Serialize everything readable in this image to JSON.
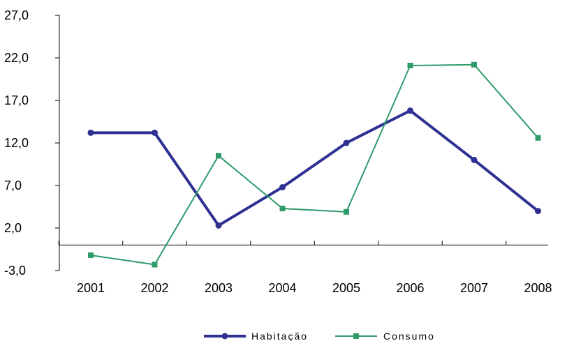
{
  "chart_data": {
    "type": "line",
    "categories": [
      "2001",
      "2002",
      "2003",
      "2004",
      "2005",
      "2006",
      "2007",
      "2008"
    ],
    "series": [
      {
        "name": "Habitação",
        "values": [
          13.2,
          13.2,
          2.3,
          6.8,
          12.0,
          15.8,
          10.0,
          4.0
        ],
        "color": "#2e3192",
        "marker": "circle"
      },
      {
        "name": "Consumo",
        "values": [
          -1.2,
          -2.3,
          10.5,
          4.3,
          3.9,
          21.1,
          21.2,
          12.6
        ],
        "color": "#2e9b6a",
        "marker": "square"
      }
    ],
    "y_ticks": [
      "27,0",
      "22,0",
      "17,0",
      "12,0",
      "7,0",
      "2,0",
      "-3,0"
    ],
    "y_tick_values": [
      27,
      22,
      17,
      12,
      7,
      2,
      -3
    ],
    "ylim": [
      -3,
      27
    ],
    "title": "",
    "xlabel": "",
    "ylabel": "",
    "grid": false,
    "legend_position": "bottom"
  }
}
